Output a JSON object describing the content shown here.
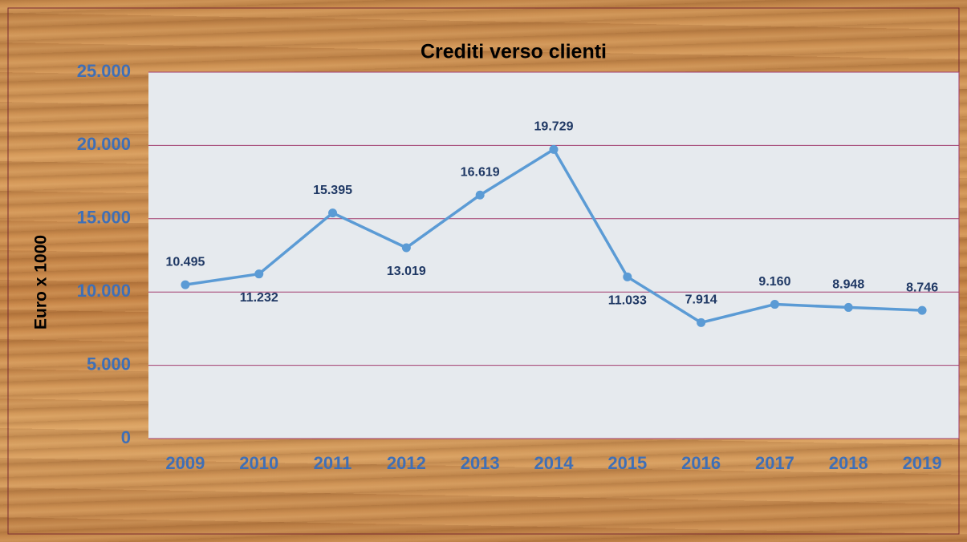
{
  "chart_data": {
    "type": "line",
    "title": "Crediti verso clienti",
    "y_label": "Euro x 1000",
    "categories": [
      "2009",
      "2010",
      "2011",
      "2012",
      "2013",
      "2014",
      "2015",
      "2016",
      "2017",
      "2018",
      "2019"
    ],
    "series": [
      {
        "name": "Crediti verso clienti",
        "color": "#5b9bd5",
        "values": [
          10495,
          11232,
          15395,
          13019,
          16619,
          19729,
          11033,
          7914,
          9160,
          8948,
          8746
        ],
        "value_labels": [
          "10.495",
          "11.232",
          "15.395",
          "13.019",
          "16.619",
          "19.729",
          "11.033",
          "7.914",
          "9.160",
          "8.948",
          "8.746"
        ]
      }
    ],
    "ylim": [
      0,
      25000
    ],
    "yticks": [
      0,
      {
        "value": 5000,
        "label": "5.000"
      },
      {
        "value": 10000,
        "label": "10.000"
      },
      {
        "value": 15000,
        "label": "15.000"
      },
      {
        "value": 20000,
        "label": "20.000"
      },
      {
        "value": 25000,
        "label": "25.000"
      }
    ],
    "grid": true
  }
}
